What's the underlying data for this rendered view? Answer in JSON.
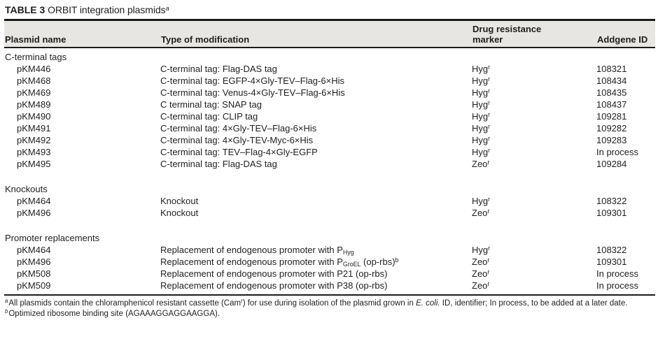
{
  "title": {
    "label": "TABLE 3",
    "text": " ORBIT integration plasmids",
    "sup": "a"
  },
  "header": {
    "plasmid_name": "Plasmid name",
    "modification": "Type of modification",
    "marker": "Drug resistance marker",
    "addgene": "Addgene ID"
  },
  "sections": [
    {
      "label": "C-terminal tags",
      "rows": [
        {
          "name": "pKM446",
          "modification": [
            {
              "text": "C-terminal tag: Flag-DAS tag"
            }
          ],
          "marker": {
            "base": "Hyg",
            "sup": "r"
          },
          "addgene": "108321"
        },
        {
          "name": "pKM468",
          "modification": [
            {
              "text": "C-terminal tag: EGFP-4×Gly-TEV–Flag-6×His"
            }
          ],
          "marker": {
            "base": "Hyg",
            "sup": "r"
          },
          "addgene": "108434"
        },
        {
          "name": "pKM469",
          "modification": [
            {
              "text": "C-terminal tag: Venus-4×Gly-TEV–Flag-6×His"
            }
          ],
          "marker": {
            "base": "Hyg",
            "sup": "r"
          },
          "addgene": "108435"
        },
        {
          "name": "pKM489",
          "modification": [
            {
              "text": "C terminal tag: SNAP tag"
            }
          ],
          "marker": {
            "base": "Hyg",
            "sup": "r"
          },
          "addgene": "108437"
        },
        {
          "name": "pKM490",
          "modification": [
            {
              "text": "C-terminal tag: CLIP tag"
            }
          ],
          "marker": {
            "base": "Hyg",
            "sup": "r"
          },
          "addgene": "109281"
        },
        {
          "name": "pKM491",
          "modification": [
            {
              "text": "C-terminal tag: 4×Gly-TEV–Flag-6×His"
            }
          ],
          "marker": {
            "base": "Hyg",
            "sup": "r"
          },
          "addgene": "109282"
        },
        {
          "name": "pKM492",
          "modification": [
            {
              "text": "C-terminal tag: 4×Gly-TEV-Myc-6×His"
            }
          ],
          "marker": {
            "base": "Hyg",
            "sup": "r"
          },
          "addgene": "109283"
        },
        {
          "name": "pKM493",
          "modification": [
            {
              "text": "C-terminal tag: TEV–Flag-4×Gly-EGFP"
            }
          ],
          "marker": {
            "base": "Hyg",
            "sup": "r"
          },
          "addgene": "In process"
        },
        {
          "name": "pKM495",
          "modification": [
            {
              "text": "C-terminal tag: Flag-DAS tag"
            }
          ],
          "marker": {
            "base": "Zeo",
            "sup": "r"
          },
          "addgene": "109284"
        }
      ]
    },
    {
      "label": "Knockouts",
      "rows": [
        {
          "name": "pKM464",
          "modification": [
            {
              "text": "Knockout"
            }
          ],
          "marker": {
            "base": "Hyg",
            "sup": "r"
          },
          "addgene": "108322"
        },
        {
          "name": "pKM496",
          "modification": [
            {
              "text": "Knockout"
            }
          ],
          "marker": {
            "base": "Zeo",
            "sup": "r"
          },
          "addgene": "109301"
        }
      ]
    },
    {
      "label": "Promoter replacements",
      "rows": [
        {
          "name": "pKM464",
          "modification": [
            {
              "text": "Replacement of endogenous promoter with P"
            },
            {
              "sub": "Hyg"
            }
          ],
          "marker": {
            "base": "Hyg",
            "sup": "r"
          },
          "addgene": "108322"
        },
        {
          "name": "pKM496",
          "modification": [
            {
              "text": "Replacement of endogenous promoter with P"
            },
            {
              "sub": "GroEL"
            },
            {
              "text": " (op-rbs)"
            },
            {
              "sup": "b"
            }
          ],
          "marker": {
            "base": "Zeo",
            "sup": "r"
          },
          "addgene": "109301"
        },
        {
          "name": "pKM508",
          "modification": [
            {
              "text": "Replacement of endogenous promoter with P21 (op-rbs)"
            }
          ],
          "marker": {
            "base": "Zeo",
            "sup": "r"
          },
          "addgene": "In process"
        },
        {
          "name": "pKM509",
          "modification": [
            {
              "text": "Replacement of endogenous promoter with P38 (op-rbs)"
            }
          ],
          "marker": {
            "base": "Zeo",
            "sup": "r"
          },
          "addgene": "In process"
        }
      ]
    }
  ],
  "footnotes": [
    {
      "sup": "a",
      "segments": [
        {
          "text": "All plasmids contain the chloramphenicol resistant cassette (Cam"
        },
        {
          "sup": "r"
        },
        {
          "text": ") for use during isolation of the plasmid grown in "
        },
        {
          "italic": "E. coli."
        },
        {
          "text": " ID, identifier; In process, to be added at a later date."
        }
      ]
    },
    {
      "sup": "b",
      "segments": [
        {
          "text": "Optimized ribosome binding site (AGAAAGGAGGAAGGA)."
        }
      ]
    }
  ],
  "colors": {
    "header_band": "#e7e6e3",
    "rule": "#1b1b1b",
    "text": "#1f1f1f"
  }
}
